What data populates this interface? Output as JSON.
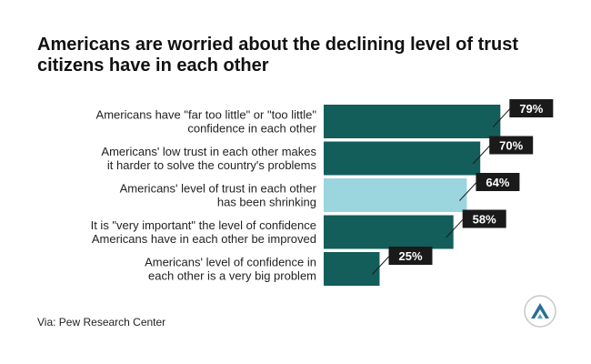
{
  "title_lines": [
    "Americans are worried about the declining level of trust",
    "citizens have in each other"
  ],
  "source": "Via: Pew Research Center",
  "colors": {
    "bar": "#135e5b",
    "highlight": "#9bd5de",
    "label_bg": "#1a1a1a",
    "label_text": "#ffffff",
    "text": "#222222"
  },
  "logo_icon": "mountain-triangle-logo-icon",
  "chart_data": {
    "type": "bar",
    "orientation": "horizontal",
    "categories": [
      [
        "Americans have \"far too little\" or \"too little\"",
        "confidence in each other"
      ],
      [
        "Americans' low trust in each other makes",
        "it harder to solve the country's problems"
      ],
      [
        "Americans' level of trust in each other",
        "has been shrinking"
      ],
      [
        "It is \"very important\" the level of confidence",
        "Americans have in each other be improved"
      ],
      [
        "Americans' level of confidence in",
        "each other is a very big problem"
      ]
    ],
    "values": [
      79,
      70,
      64,
      58,
      25
    ],
    "value_labels": [
      "79%",
      "70%",
      "64%",
      "58%",
      "25%"
    ],
    "highlight_index": 2,
    "xlim": [
      0,
      100
    ],
    "title": "Americans are worried about the declining level of trust citizens have in each other",
    "xlabel": "",
    "ylabel": "",
    "grid": false,
    "legend": "none"
  }
}
